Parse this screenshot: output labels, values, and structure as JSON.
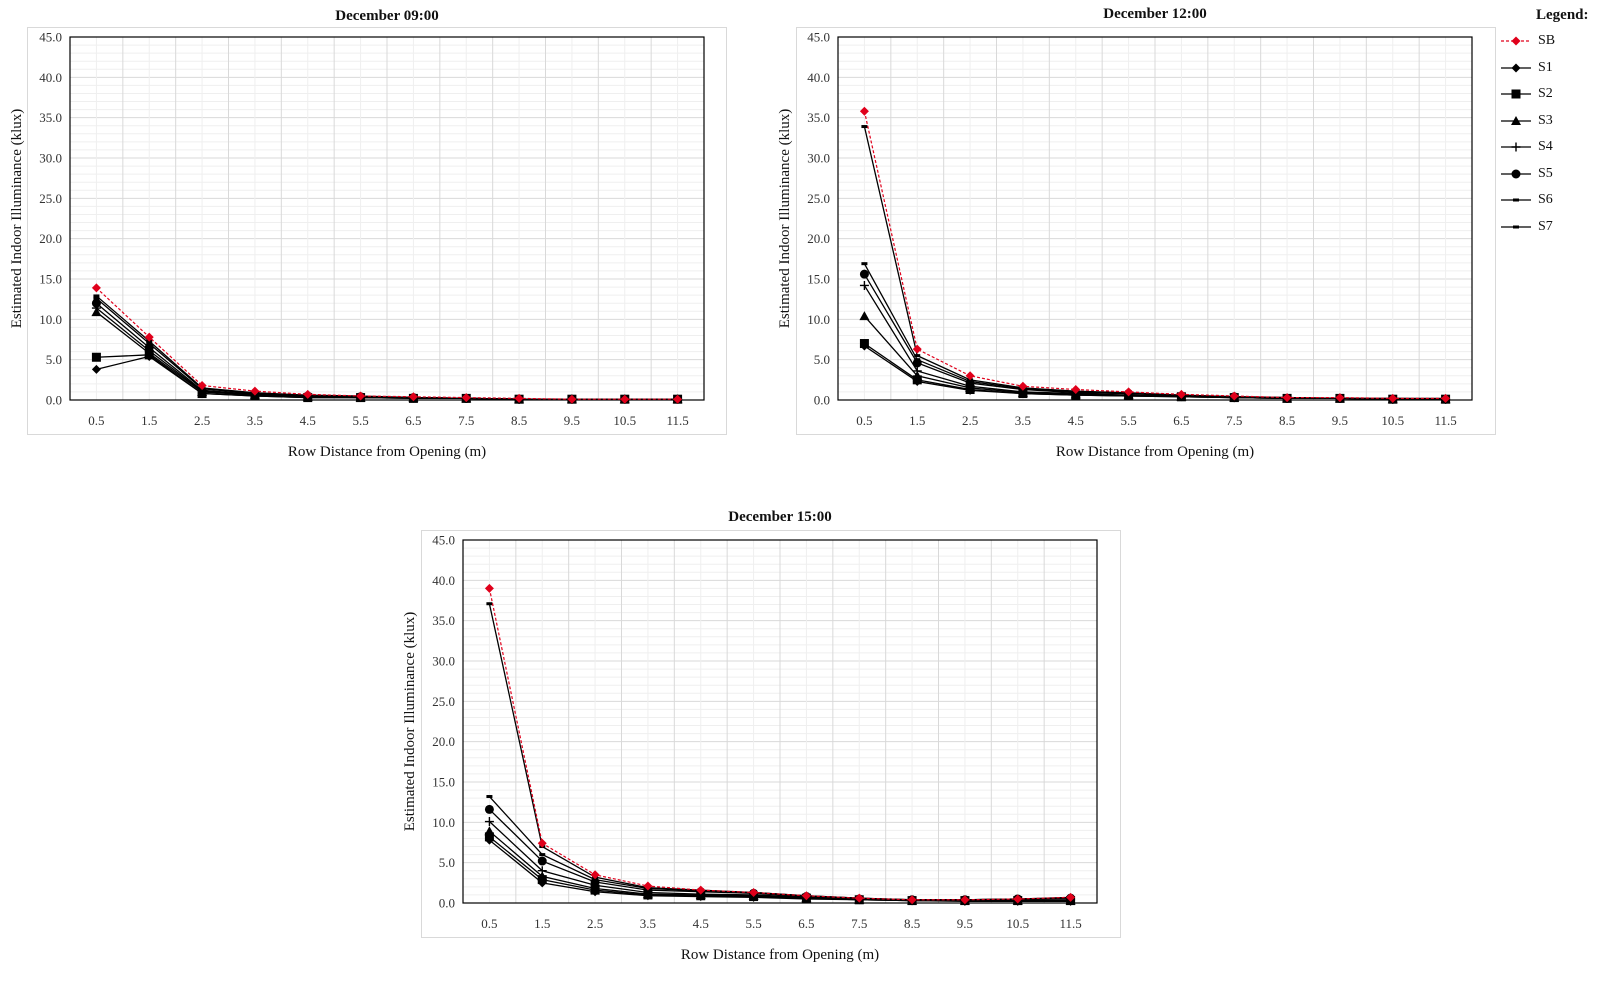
{
  "legend": {
    "title": "Legend:",
    "items": [
      {
        "name": "SB",
        "marker": "diamond",
        "color": "#e0001b",
        "dashed": true
      },
      {
        "name": "S1",
        "marker": "diamond",
        "color": "#000000",
        "dashed": false
      },
      {
        "name": "S2",
        "marker": "square",
        "color": "#000000",
        "dashed": false
      },
      {
        "name": "S3",
        "marker": "triangle",
        "color": "#000000",
        "dashed": false
      },
      {
        "name": "S4",
        "marker": "plus",
        "color": "#000000",
        "dashed": false
      },
      {
        "name": "S5",
        "marker": "circle",
        "color": "#000000",
        "dashed": false
      },
      {
        "name": "S6",
        "marker": "dash",
        "color": "#000000",
        "dashed": false
      },
      {
        "name": "S7",
        "marker": "dash",
        "color": "#000000",
        "dashed": false
      }
    ]
  },
  "chart_data": [
    {
      "type": "line",
      "title": "December 09:00",
      "xlabel": "Row Distance from Opening (m)",
      "ylabel": "Estimated Indoor Illuminance (klux)",
      "ylim": [
        0,
        45
      ],
      "yticks": [
        "0.0",
        "5.0",
        "10.0",
        "15.0",
        "20.0",
        "25.0",
        "30.0",
        "35.0",
        "40.0",
        "45.0"
      ],
      "categories": [
        "0.5",
        "1.5",
        "2.5",
        "3.5",
        "4.5",
        "5.5",
        "6.5",
        "7.5",
        "8.5",
        "9.5",
        "10.5",
        "11.5"
      ],
      "grid": true,
      "series": [
        {
          "name": "SB",
          "values": [
            13.9,
            7.8,
            1.8,
            1.1,
            0.7,
            0.5,
            0.4,
            0.3,
            0.2,
            0.1,
            0.1,
            0.1
          ]
        },
        {
          "name": "S1",
          "values": [
            3.8,
            5.4,
            0.8,
            0.5,
            0.3,
            0.3,
            0.2,
            0.2,
            0.1,
            0.1,
            0.1,
            0.1
          ]
        },
        {
          "name": "S2",
          "values": [
            5.3,
            5.6,
            0.8,
            0.5,
            0.3,
            0.3,
            0.2,
            0.2,
            0.1,
            0.1,
            0.1,
            0.1
          ]
        },
        {
          "name": "S3",
          "values": [
            10.9,
            5.8,
            1.0,
            0.6,
            0.4,
            0.3,
            0.3,
            0.2,
            0.1,
            0.1,
            0.1,
            0.1
          ]
        },
        {
          "name": "S4",
          "values": [
            11.4,
            6.1,
            1.1,
            0.7,
            0.4,
            0.4,
            0.3,
            0.2,
            0.1,
            0.1,
            0.1,
            0.1
          ]
        },
        {
          "name": "S5",
          "values": [
            12.0,
            6.5,
            1.2,
            0.7,
            0.5,
            0.4,
            0.3,
            0.2,
            0.1,
            0.1,
            0.1,
            0.1
          ]
        },
        {
          "name": "S6",
          "values": [
            12.6,
            7.0,
            1.4,
            0.8,
            0.5,
            0.4,
            0.3,
            0.2,
            0.1,
            0.1,
            0.1,
            0.1
          ]
        },
        {
          "name": "S7",
          "values": [
            12.9,
            7.3,
            1.5,
            0.9,
            0.6,
            0.5,
            0.3,
            0.2,
            0.1,
            0.1,
            0.1,
            0.1
          ]
        }
      ]
    },
    {
      "type": "line",
      "title": "December 12:00",
      "xlabel": "Row Distance from Opening (m)",
      "ylabel": "Estimated Indoor Illuminance (klux)",
      "ylim": [
        0,
        45
      ],
      "yticks": [
        "0.0",
        "5.0",
        "10.0",
        "15.0",
        "20.0",
        "25.0",
        "30.0",
        "35.0",
        "40.0",
        "45.0"
      ],
      "categories": [
        "0.5",
        "1.5",
        "2.5",
        "3.5",
        "4.5",
        "5.5",
        "6.5",
        "7.5",
        "8.5",
        "9.5",
        "10.5",
        "11.5"
      ],
      "grid": true,
      "series": [
        {
          "name": "SB",
          "values": [
            35.8,
            6.3,
            3.0,
            1.7,
            1.3,
            1.0,
            0.7,
            0.5,
            0.3,
            0.3,
            0.2,
            0.2
          ]
        },
        {
          "name": "S1",
          "values": [
            6.7,
            2.3,
            1.2,
            0.8,
            0.6,
            0.5,
            0.4,
            0.3,
            0.2,
            0.2,
            0.1,
            0.1
          ]
        },
        {
          "name": "S2",
          "values": [
            7.0,
            2.5,
            1.3,
            0.8,
            0.6,
            0.5,
            0.4,
            0.3,
            0.2,
            0.2,
            0.1,
            0.1
          ]
        },
        {
          "name": "S3",
          "values": [
            10.4,
            3.0,
            1.5,
            0.9,
            0.7,
            0.6,
            0.4,
            0.3,
            0.2,
            0.2,
            0.1,
            0.1
          ]
        },
        {
          "name": "S4",
          "values": [
            14.2,
            3.6,
            1.7,
            1.0,
            0.8,
            0.6,
            0.5,
            0.3,
            0.2,
            0.2,
            0.1,
            0.1
          ]
        },
        {
          "name": "S5",
          "values": [
            15.6,
            4.6,
            2.1,
            1.3,
            0.9,
            0.8,
            0.5,
            0.4,
            0.2,
            0.2,
            0.1,
            0.1
          ]
        },
        {
          "name": "S6",
          "values": [
            16.9,
            5.0,
            2.3,
            1.4,
            1.0,
            0.8,
            0.6,
            0.4,
            0.3,
            0.2,
            0.2,
            0.1
          ]
        },
        {
          "name": "S7",
          "values": [
            33.9,
            5.5,
            2.5,
            1.5,
            1.1,
            0.9,
            0.6,
            0.4,
            0.3,
            0.2,
            0.2,
            0.2
          ]
        }
      ]
    },
    {
      "type": "line",
      "title": "December 15:00",
      "xlabel": "Row Distance from Opening (m)",
      "ylabel": "Estimated Indoor Illuminance (klux)",
      "ylim": [
        0,
        45
      ],
      "yticks": [
        "0.0",
        "5.0",
        "10.0",
        "15.0",
        "20.0",
        "25.0",
        "30.0",
        "35.0",
        "40.0",
        "45.0"
      ],
      "categories": [
        "0.5",
        "1.5",
        "2.5",
        "3.5",
        "4.5",
        "5.5",
        "6.5",
        "7.5",
        "8.5",
        "9.5",
        "10.5",
        "11.5"
      ],
      "grid": true,
      "series": [
        {
          "name": "SB",
          "values": [
            39.0,
            7.4,
            3.5,
            2.1,
            1.6,
            1.3,
            0.9,
            0.6,
            0.4,
            0.4,
            0.5,
            0.7
          ]
        },
        {
          "name": "S1",
          "values": [
            7.8,
            2.5,
            1.4,
            0.9,
            0.8,
            0.7,
            0.5,
            0.4,
            0.3,
            0.2,
            0.2,
            0.2
          ]
        },
        {
          "name": "S2",
          "values": [
            8.2,
            2.9,
            1.6,
            1.0,
            0.9,
            0.8,
            0.6,
            0.4,
            0.3,
            0.3,
            0.3,
            0.3
          ]
        },
        {
          "name": "S3",
          "values": [
            8.9,
            3.3,
            1.8,
            1.1,
            1.0,
            0.9,
            0.6,
            0.4,
            0.3,
            0.3,
            0.3,
            0.3
          ]
        },
        {
          "name": "S4",
          "values": [
            10.1,
            4.0,
            2.2,
            1.3,
            1.1,
            1.0,
            0.7,
            0.5,
            0.3,
            0.3,
            0.4,
            0.4
          ]
        },
        {
          "name": "S5",
          "values": [
            11.6,
            5.2,
            2.6,
            1.6,
            1.4,
            1.2,
            0.8,
            0.5,
            0.4,
            0.4,
            0.5,
            0.6
          ]
        },
        {
          "name": "S6",
          "values": [
            13.2,
            6.0,
            2.9,
            1.8,
            1.5,
            1.3,
            0.9,
            0.6,
            0.4,
            0.4,
            0.5,
            0.6
          ]
        },
        {
          "name": "S7",
          "values": [
            37.1,
            7.0,
            3.2,
            1.9,
            1.6,
            1.3,
            0.9,
            0.6,
            0.4,
            0.4,
            0.5,
            0.7
          ]
        }
      ]
    }
  ]
}
